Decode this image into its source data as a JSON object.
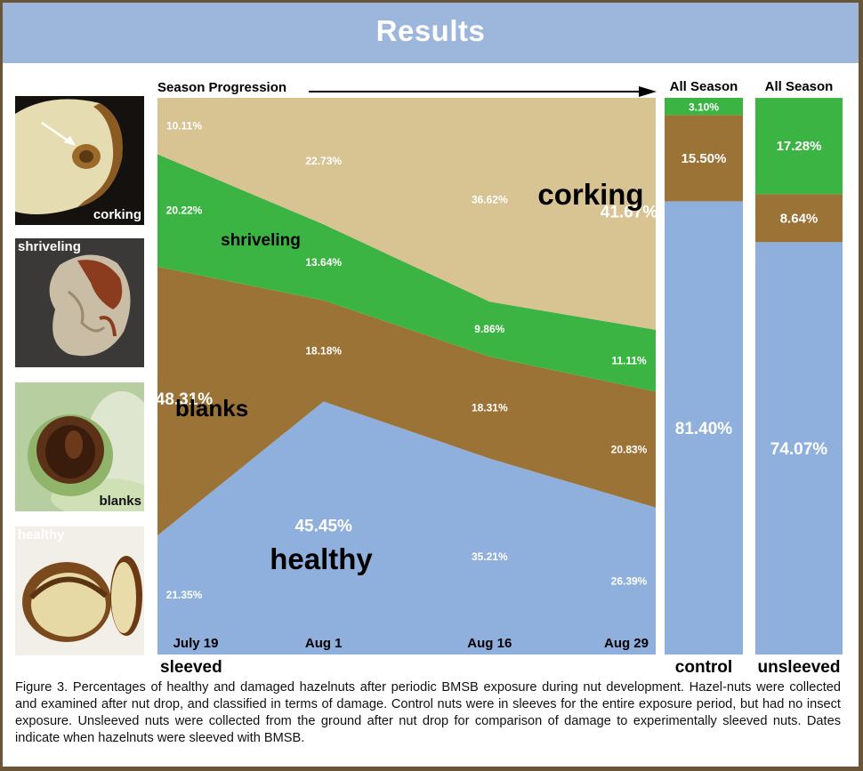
{
  "header": {
    "title": "Results"
  },
  "photos": [
    {
      "name": "corking",
      "label": "corking",
      "label_color": "#ffffff"
    },
    {
      "name": "shriveling",
      "label": "shriveling",
      "label_color": "#ffffff"
    },
    {
      "name": "blanks",
      "label": "blanks",
      "label_color": "#111111"
    },
    {
      "name": "healthy",
      "label": "healthy",
      "label_color": "#ffffff"
    }
  ],
  "chart_data": [
    {
      "type": "area",
      "stacked": true,
      "normalized_percent": true,
      "title": "Season Progression",
      "xlabel": "sleeved",
      "categories": [
        "July 19",
        "Aug 1",
        "Aug 16",
        "Aug 29"
      ],
      "series": [
        {
          "name": "healthy",
          "color": "#8fb0dc",
          "values": [
            21.35,
            45.45,
            35.21,
            26.39
          ],
          "labels": [
            "21.35%",
            "45.45%",
            "35.21%",
            "26.39%"
          ]
        },
        {
          "name": "blanks",
          "color": "#9c7337",
          "values": [
            48.31,
            18.18,
            18.31,
            20.83
          ],
          "labels": [
            "48.31%",
            "18.18%",
            "18.31%",
            "20.83%"
          ]
        },
        {
          "name": "shriveling",
          "color": "#3cb443",
          "values": [
            20.22,
            13.64,
            9.86,
            11.11
          ],
          "labels": [
            "20.22%",
            "13.64%",
            "9.86%",
            "11.11%"
          ]
        },
        {
          "name": "corking",
          "color": "#d8c393",
          "values": [
            10.11,
            22.73,
            36.62,
            41.67
          ],
          "labels": [
            "10.11%",
            "22.73%",
            "36.62%",
            "41.67%"
          ]
        }
      ]
    },
    {
      "type": "bar",
      "stacked": true,
      "title": "All Season",
      "xlabel": "control",
      "series": [
        {
          "name": "healthy",
          "color": "#8fb0dc",
          "values": [
            81.4
          ],
          "labels": [
            "81.40%"
          ]
        },
        {
          "name": "blanks",
          "color": "#9c7337",
          "values": [
            15.5
          ],
          "labels": [
            "15.50%"
          ]
        },
        {
          "name": "shriveling",
          "color": "#3cb443",
          "values": [
            3.1
          ],
          "labels": [
            "3.10%"
          ]
        }
      ]
    },
    {
      "type": "bar",
      "stacked": true,
      "title": "All Season",
      "xlabel": "unsleeved",
      "series": [
        {
          "name": "healthy",
          "color": "#8fb0dc",
          "values": [
            74.07
          ],
          "labels": [
            "74.07%"
          ]
        },
        {
          "name": "blanks",
          "color": "#9c7337",
          "values": [
            8.64
          ],
          "labels": [
            "8.64%"
          ]
        },
        {
          "name": "shriveling",
          "color": "#3cb443",
          "values": [
            17.28
          ],
          "labels": [
            "17.28%"
          ]
        }
      ]
    }
  ],
  "caption": "Figure 3. Percentages of healthy and damaged hazelnuts after periodic BMSB exposure during nut development. Hazel-nuts were collected and examined after nut drop, and classified in terms of damage. Control nuts were in sleeves for the entire exposure period, but had no insect exposure. Unsleeved nuts were collected from the ground after nut drop for comparison of damage to experimentally sleeved nuts. Dates indicate when hazelnuts were sleeved with BMSB."
}
